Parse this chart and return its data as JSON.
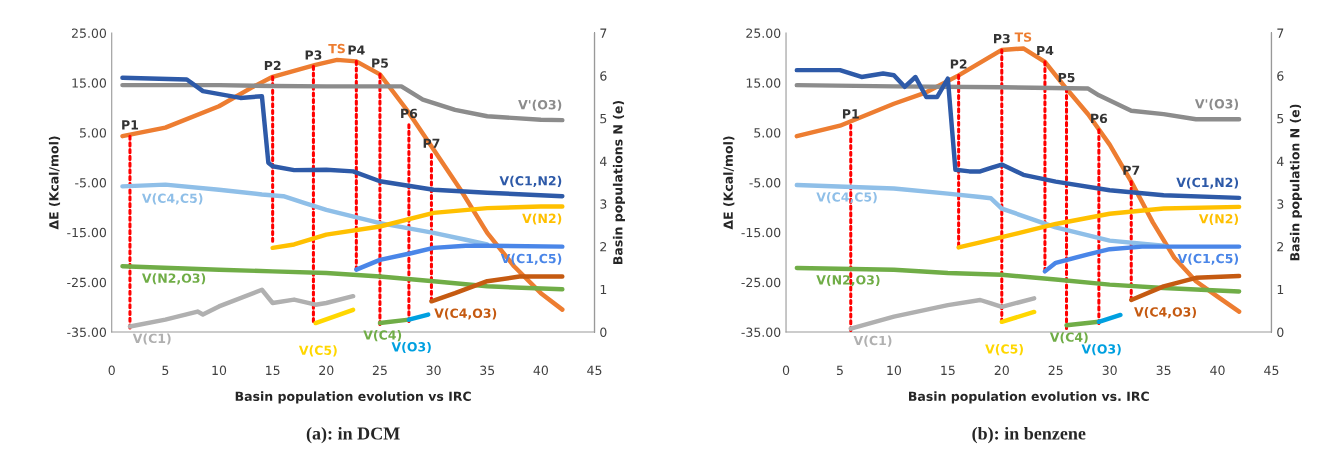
{
  "chart_data": [
    {
      "type": "line",
      "title": "(a): in DCM",
      "xlabel": "Basin population evolution vs IRC",
      "ylabel": "ΔE (Kcal/mol)",
      "y2label": "Basin populations N (e)",
      "xlim": [
        0,
        45
      ],
      "xticks": [
        0,
        5,
        10,
        15,
        20,
        25,
        30,
        35,
        40,
        45
      ],
      "ylim": [
        -35,
        25
      ],
      "yticks": [
        {
          "value": -35,
          "label": "-35.00"
        },
        {
          "value": -25,
          "label": "-25.00"
        },
        {
          "value": -15,
          "label": "-15.00"
        },
        {
          "value": -5,
          "label": "-5.00"
        },
        {
          "value": 5,
          "label": "5.00"
        },
        {
          "value": 15,
          "label": "15.00"
        },
        {
          "value": 25,
          "label": "25.00"
        }
      ],
      "y2lim": [
        0,
        7
      ],
      "y2ticks": [
        0,
        1,
        2,
        3,
        4,
        5,
        6,
        7
      ],
      "series": [
        {
          "name": "TS",
          "color": "#ed7d31",
          "axis": "y",
          "x": [
            1,
            5,
            10,
            13,
            15,
            19,
            21,
            22.8,
            25,
            27.5,
            30,
            32.5,
            35,
            37.5,
            40,
            42
          ],
          "values": [
            4.3,
            6,
            10.3,
            14,
            16.2,
            18.6,
            19.6,
            19.3,
            16.7,
            9.6,
            1.6,
            -6.4,
            -15.1,
            -21.8,
            -27.2,
            -30.5
          ]
        },
        {
          "name": "V'(O3)",
          "color": "#8c8c8c",
          "axis": "y2",
          "x": [
            1,
            10,
            15,
            20,
            27,
            29,
            32,
            35,
            40,
            42
          ],
          "values": [
            5.78,
            5.78,
            5.76,
            5.75,
            5.75,
            5.44,
            5.2,
            5.05,
            4.97,
            4.96
          ]
        },
        {
          "name": "V(C1,N2)",
          "color": "#2e5aa8",
          "axis": "y2",
          "x": [
            1,
            7,
            8.5,
            12,
            14,
            14.6,
            15,
            17,
            20,
            22.5,
            25,
            30,
            35,
            42
          ],
          "values": [
            5.95,
            5.91,
            5.64,
            5.48,
            5.52,
            3.96,
            3.88,
            3.79,
            3.8,
            3.76,
            3.53,
            3.33,
            3.26,
            3.18
          ]
        },
        {
          "name": "V(C4,C5)",
          "color": "#8fbfe8",
          "axis": "y2",
          "x": [
            1,
            5,
            10,
            14,
            16,
            18,
            20,
            25,
            30,
            33,
            35
          ],
          "values": [
            3.41,
            3.45,
            3.33,
            3.22,
            3.18,
            3.02,
            2.86,
            2.55,
            2.32,
            2.16,
            2.05
          ]
        },
        {
          "name": "V(C1,C5)",
          "color": "#4a86e8",
          "axis": "y2",
          "x": [
            22.8,
            25,
            28,
            30,
            33,
            35,
            42
          ],
          "values": [
            1.46,
            1.69,
            1.85,
            1.97,
            2.02,
            2.02,
            2.0
          ]
        },
        {
          "name": "V(N2)",
          "color": "#ffc000",
          "axis": "y2",
          "x": [
            15,
            17,
            20,
            25,
            30,
            35,
            40,
            42
          ],
          "values": [
            1.97,
            2.05,
            2.28,
            2.47,
            2.79,
            2.9,
            2.94,
            2.94
          ]
        },
        {
          "name": "V(N2,O3)",
          "color": "#70ad47",
          "axis": "y2",
          "x": [
            1,
            10,
            15,
            20,
            25,
            30,
            35,
            42
          ],
          "values": [
            1.54,
            1.46,
            1.42,
            1.38,
            1.3,
            1.19,
            1.07,
            1.0
          ]
        },
        {
          "name": "V(C1)",
          "color": "#b0b0b0",
          "axis": "y2",
          "x": [
            1.7,
            5,
            8,
            8.5,
            10,
            14,
            15,
            17,
            19,
            20,
            22.5
          ],
          "values": [
            0.13,
            0.29,
            0.48,
            0.41,
            0.6,
            0.99,
            0.68,
            0.76,
            0.64,
            0.68,
            0.84
          ]
        },
        {
          "name": "V(C5)",
          "color": "#ffd700",
          "axis": "y2",
          "x": [
            19,
            22.5
          ],
          "values": [
            0.21,
            0.52
          ]
        },
        {
          "name": "V(C4)",
          "color": "#70ad47",
          "axis": "y2",
          "x": [
            25,
            27.7
          ],
          "values": [
            0.21,
            0.29
          ]
        },
        {
          "name": "V(O3)",
          "color": "#00a0e0",
          "axis": "y2",
          "x": [
            27.7,
            29.5
          ],
          "values": [
            0.29,
            0.41
          ]
        },
        {
          "name": "V(C4,O3)",
          "color": "#c55a11",
          "axis": "y2",
          "x": [
            29.8,
            32,
            35,
            38,
            42
          ],
          "values": [
            0.72,
            0.91,
            1.19,
            1.3,
            1.3
          ]
        },
        {
          "name": "P1",
          "color": "#ff0000",
          "axis": "y",
          "line_style": "dotted",
          "x": [
            1.7,
            1.7
          ],
          "values": [
            4.3,
            -34.2
          ]
        },
        {
          "name": "P2",
          "color": "#ff0000",
          "axis": "y",
          "line_style": "dotted",
          "x": [
            15,
            15
          ],
          "values": [
            16.2,
            -16.8
          ]
        },
        {
          "name": "P3",
          "color": "#ff0000",
          "axis": "y",
          "line_style": "dotted",
          "x": [
            18.8,
            18.8
          ],
          "values": [
            18.3,
            -32.9
          ]
        },
        {
          "name": "P4",
          "color": "#ff0000",
          "axis": "y",
          "line_style": "dotted",
          "x": [
            22.8,
            22.8
          ],
          "values": [
            19.3,
            -22.5
          ]
        },
        {
          "name": "P5",
          "color": "#ff0000",
          "axis": "y",
          "line_style": "dotted",
          "x": [
            25,
            25
          ],
          "values": [
            16.7,
            -33.5
          ]
        },
        {
          "name": "P6",
          "color": "#ff0000",
          "axis": "y",
          "line_style": "dotted",
          "x": [
            27.7,
            27.7
          ],
          "values": [
            6.6,
            -32.9
          ]
        },
        {
          "name": "P7",
          "color": "#ff0000",
          "axis": "y",
          "line_style": "dotted",
          "x": [
            29.8,
            29.8
          ],
          "values": [
            0.6,
            -28.8
          ]
        }
      ]
    },
    {
      "type": "line",
      "title": "(b): in benzene",
      "xlabel": "Basin population evolution vs. IRC",
      "ylabel": "ΔE (Kcal/mol)",
      "y2label": "Basin population N (e)",
      "xlim": [
        0,
        45
      ],
      "xticks": [
        0,
        5,
        10,
        15,
        20,
        25,
        30,
        35,
        40,
        45
      ],
      "ylim": [
        -35,
        25
      ],
      "yticks": [
        {
          "value": -35,
          "label": "-35.00"
        },
        {
          "value": -25,
          "label": "-25.00"
        },
        {
          "value": -15,
          "label": "-15.00"
        },
        {
          "value": -5,
          "label": "-5.00"
        },
        {
          "value": 5,
          "label": "5.00"
        },
        {
          "value": 15,
          "label": "15.00"
        },
        {
          "value": 25,
          "label": "25.00"
        }
      ],
      "y2lim": [
        0,
        7
      ],
      "y2ticks": [
        0,
        1,
        2,
        3,
        4,
        5,
        6,
        7
      ],
      "series": [
        {
          "name": "TS",
          "color": "#ed7d31",
          "axis": "y",
          "x": [
            1,
            5,
            10,
            13,
            16,
            20,
            22,
            24,
            26,
            28,
            30,
            32,
            34,
            36,
            38,
            40,
            42
          ],
          "values": [
            4.3,
            6.4,
            10.8,
            13.1,
            16.5,
            21.6,
            21.9,
            19.2,
            13.8,
            8.7,
            2.6,
            -4.8,
            -13,
            -20.1,
            -24.8,
            -27.9,
            -30.9
          ]
        },
        {
          "name": "V'(O3)",
          "color": "#8c8c8c",
          "axis": "y2",
          "x": [
            1,
            10,
            20,
            28,
            29,
            32,
            35,
            38,
            42
          ],
          "values": [
            5.78,
            5.75,
            5.73,
            5.7,
            5.54,
            5.18,
            5.1,
            4.98,
            4.98
          ]
        },
        {
          "name": "V(C1,N2)",
          "color": "#2e5aa8",
          "axis": "y2",
          "x": [
            1,
            5,
            7,
            9,
            10,
            11,
            12,
            13,
            14,
            15,
            15.7,
            17,
            18,
            19,
            20,
            22,
            25,
            30,
            35,
            42
          ],
          "values": [
            6.13,
            6.13,
            5.97,
            6.05,
            6.01,
            5.74,
            5.97,
            5.5,
            5.5,
            5.93,
            3.8,
            3.76,
            3.76,
            3.84,
            3.92,
            3.68,
            3.52,
            3.32,
            3.2,
            3.14
          ]
        },
        {
          "name": "V(C4,C5)",
          "color": "#8fbfe8",
          "axis": "y2",
          "x": [
            1,
            10,
            15,
            18,
            19,
            20,
            25,
            30,
            35
          ],
          "values": [
            3.44,
            3.36,
            3.24,
            3.16,
            3.13,
            2.89,
            2.45,
            2.14,
            2.02
          ]
        },
        {
          "name": "V(C1,C5)",
          "color": "#4a86e8",
          "axis": "y2",
          "x": [
            24,
            25,
            28,
            30,
            33,
            42
          ],
          "values": [
            1.42,
            1.62,
            1.82,
            1.94,
            2.0,
            2.0
          ]
        },
        {
          "name": "V(N2)",
          "color": "#ffc000",
          "axis": "y2",
          "x": [
            16,
            18,
            20,
            25,
            30,
            35,
            42
          ],
          "values": [
            1.98,
            2.1,
            2.22,
            2.53,
            2.77,
            2.89,
            2.93
          ]
        },
        {
          "name": "V(N2,O3)",
          "color": "#70ad47",
          "axis": "y2",
          "x": [
            1,
            10,
            15,
            20,
            25,
            30,
            35,
            42
          ],
          "values": [
            1.5,
            1.46,
            1.38,
            1.34,
            1.23,
            1.11,
            1.03,
            0.95
          ]
        },
        {
          "name": "V(C1)",
          "color": "#b0b0b0",
          "axis": "y2",
          "x": [
            6,
            10,
            15,
            18,
            19,
            20,
            23
          ],
          "values": [
            0.08,
            0.36,
            0.63,
            0.75,
            0.67,
            0.59,
            0.79
          ]
        },
        {
          "name": "V(C5)",
          "color": "#ffd700",
          "axis": "y2",
          "x": [
            20,
            23
          ],
          "values": [
            0.24,
            0.47
          ]
        },
        {
          "name": "V(C4)",
          "color": "#70ad47",
          "axis": "y2",
          "x": [
            26,
            29
          ],
          "values": [
            0.16,
            0.24
          ]
        },
        {
          "name": "V(O3)",
          "color": "#00a0e0",
          "axis": "y2",
          "x": [
            29,
            31
          ],
          "values": [
            0.24,
            0.4
          ]
        },
        {
          "name": "V(C4,O3)",
          "color": "#c55a11",
          "axis": "y2",
          "x": [
            32,
            35,
            38,
            42
          ],
          "values": [
            0.75,
            1.07,
            1.27,
            1.31
          ]
        },
        {
          "name": "P1",
          "color": "#ff0000",
          "axis": "y",
          "line_style": "dotted",
          "x": [
            6,
            6
          ],
          "values": [
            6.5,
            -34.7
          ]
        },
        {
          "name": "P2",
          "color": "#ff0000",
          "axis": "y",
          "line_style": "dotted",
          "x": [
            16,
            16
          ],
          "values": [
            16.5,
            -17.7
          ]
        },
        {
          "name": "P3",
          "color": "#ff0000",
          "axis": "y",
          "line_style": "dotted",
          "x": [
            20,
            20
          ],
          "values": [
            21.6,
            -33
          ]
        },
        {
          "name": "P4",
          "color": "#ff0000",
          "axis": "y",
          "line_style": "dotted",
          "x": [
            24,
            24
          ],
          "values": [
            19.2,
            -22.8
          ]
        },
        {
          "name": "P5",
          "color": "#ff0000",
          "axis": "y",
          "line_style": "dotted",
          "x": [
            26,
            26
          ],
          "values": [
            13.8,
            -34.3
          ]
        },
        {
          "name": "P6",
          "color": "#ff0000",
          "axis": "y",
          "line_style": "dotted",
          "x": [
            29,
            29
          ],
          "values": [
            5.6,
            -33.3
          ]
        },
        {
          "name": "P7",
          "color": "#ff0000",
          "axis": "y",
          "line_style": "dotted",
          "x": [
            32,
            32
          ],
          "values": [
            -4.8,
            -28.6
          ]
        }
      ]
    }
  ]
}
